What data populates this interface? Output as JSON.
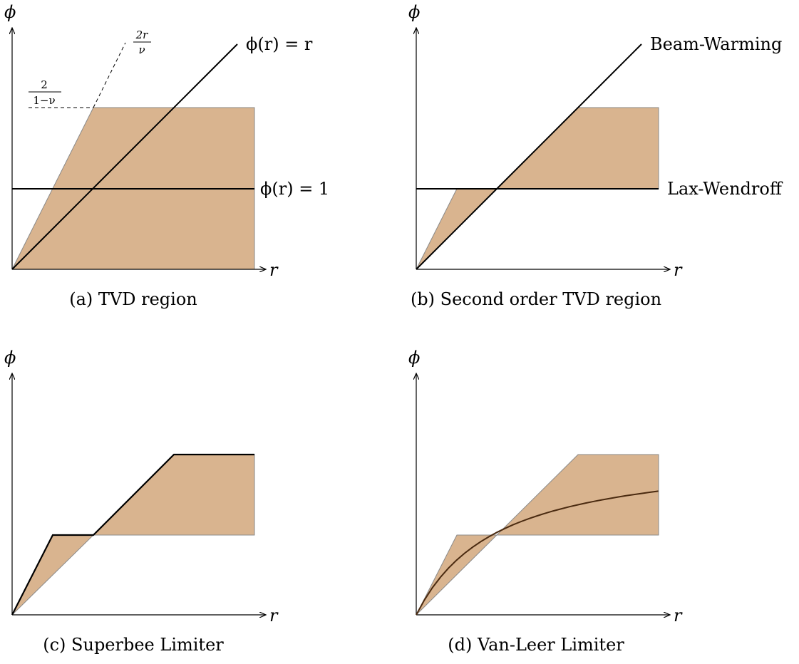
{
  "colors": {
    "region_fill": "#d9b48f",
    "region_stroke": "#8a8a8a",
    "line": "#000000"
  },
  "axes": {
    "x_symbol": "r",
    "y_symbol": "ϕ"
  },
  "panels": {
    "a": {
      "caption": "(a) TVD region",
      "line_label_r": "ϕ(r) = r",
      "line_label_1": "ϕ(r) = 1",
      "frac_top": {
        "num": "2r",
        "den": "ν"
      },
      "frac_left": {
        "num": "2",
        "den": "1−ν"
      }
    },
    "b": {
      "caption": "(b) Second order TVD region",
      "label_beam": "Beam-Warming",
      "label_lax": "Lax-Wendroff"
    },
    "c": {
      "caption": "(c) Superbee Limiter"
    },
    "d": {
      "caption": "(d) Van-Leer Limiter"
    }
  }
}
